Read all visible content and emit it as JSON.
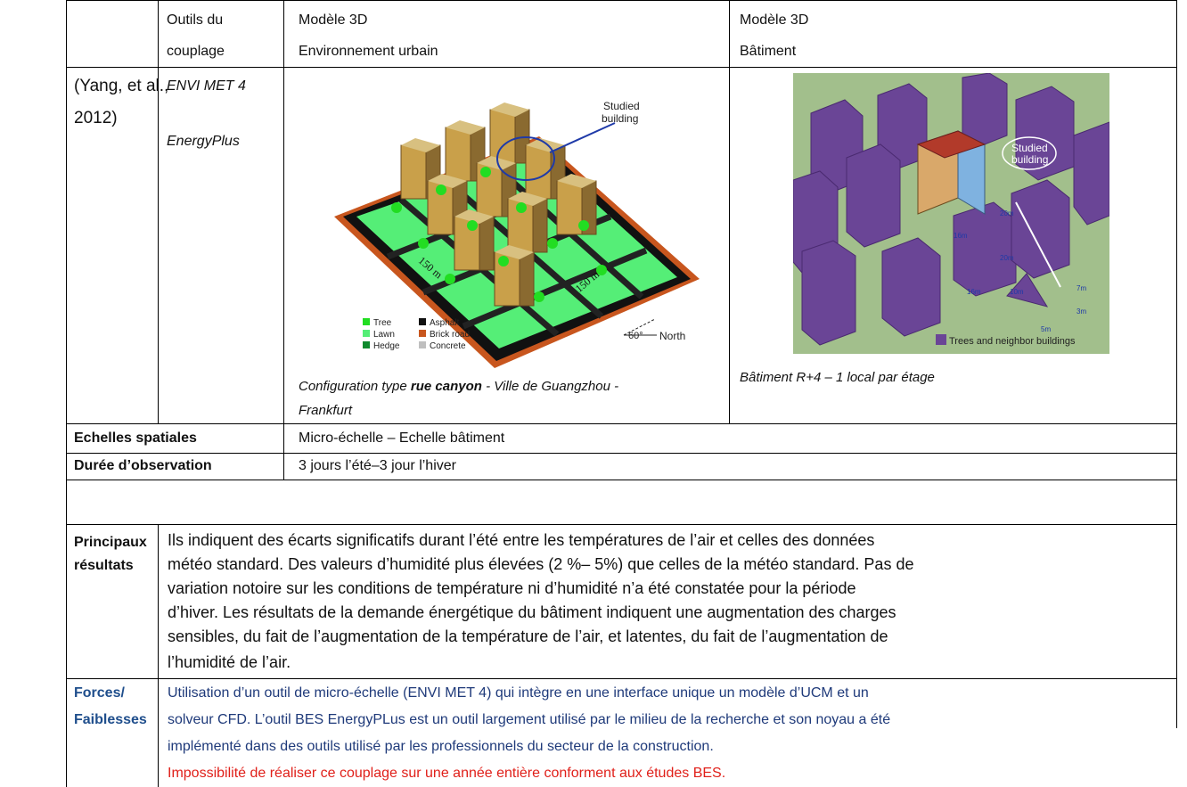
{
  "header": {
    "col2_line1": "Outils du",
    "col2_line2": "couplage",
    "col3_line1": "Modèle 3D",
    "col3_line2": "Environnement urbain",
    "col4_line1": "Modèle 3D",
    "col4_line2": "Bâtiment"
  },
  "study": {
    "ref_line1": "(Yang, et al.,",
    "ref_line2": "2012)",
    "tool1": "ENVI MET 4",
    "tool2": "EnergyPlus"
  },
  "figure1": {
    "studied_line1": "Studied",
    "studied_line2": "building",
    "dim1": "150 m",
    "dim2": "150 m",
    "angle": "60°",
    "north": "North",
    "legend": [
      {
        "label": "Tree",
        "color": "#22dd22"
      },
      {
        "label": "Lawn",
        "color": "#55ee77"
      },
      {
        "label": "Hedge",
        "color": "#0f8a2e"
      },
      {
        "label": "Asphalt",
        "color": "#111111"
      },
      {
        "label": "Brick road",
        "color": "#c8561e"
      },
      {
        "label": "Concrete",
        "color": "#bfbfbf"
      }
    ],
    "caption_pre": "Configuration type ",
    "caption_bold": "rue canyon",
    "caption_post": " - Ville de Guangzhou -",
    "caption_line2": "Frankfurt"
  },
  "figure2": {
    "studied_line1": "Studied",
    "studied_line2": "building",
    "dims": [
      "20m",
      "16m",
      "20m",
      "16m",
      "10m",
      "7m",
      "3m",
      "5m"
    ],
    "legend_label": "Trees and neighbor buildings",
    "legend_color": "#6a4596",
    "caption": "Bâtiment R+4 – 1 local par étage"
  },
  "rows": {
    "echelles_label": "Echelles spatiales",
    "echelles_value": "Micro-échelle – Echelle bâtiment",
    "duree_label": "Durée d’observation",
    "duree_value": "3 jours l’été–3 jour l’hiver",
    "principaux_label1": "Principaux",
    "principaux_label2": "résultats",
    "principaux_lines": [
      "Ils indiquent des écarts significatifs durant l’été entre les températures de l’air et celles des données",
      "météo standard. Des valeurs d’humidité plus élevées (2 %– 5%) que celles de la météo standard. Pas de",
      "variation notoire sur les conditions de température ni d’humidité n’a été constatée pour la période",
      "d’hiver. Les résultats de la demande énergétique du bâtiment indiquent une augmentation des charges",
      "sensibles, du fait de l’augmentation de la température de l’air, et latentes, du fait de l’augmentation de",
      "l’humidité de l’air."
    ],
    "forces_label1": "Forces/",
    "forces_label2": "Faiblesses",
    "forces_lines": [
      "Utilisation d’un outil de micro-échelle (ENVI MET 4) qui intègre en une interface unique un modèle d’UCM et un",
      "solveur CFD. L’outil BES EnergyPLus est un outil largement utilisé par le milieu de la recherche et son noyau a été",
      "implémenté dans des outils utilisé par les professionnels du secteur de la construction."
    ],
    "faiblesse_line": "Impossibilité de réaliser ce couplage sur une année entière conforment aux études BES."
  }
}
